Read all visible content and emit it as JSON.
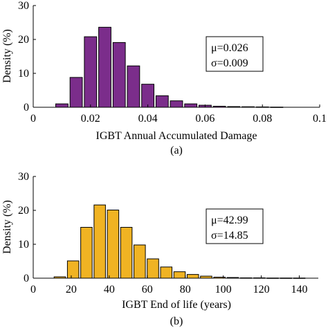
{
  "chart_data": [
    {
      "type": "bar",
      "panel_label": "(a)",
      "xlabel": "IGBT Annual Accumulated Damage",
      "ylabel": "Density (%)",
      "xlim": [
        0,
        0.1
      ],
      "ylim": [
        0,
        30
      ],
      "xticks": [
        "0",
        "0.02",
        "0.04",
        "0.06",
        "0.08",
        "0.1"
      ],
      "yticks": [
        "0",
        "10",
        "20",
        "30"
      ],
      "bar_color": "#7B2D8B",
      "bin_width": 0.005,
      "bins": [
        {
          "x": 0.01,
          "value": 1.0
        },
        {
          "x": 0.015,
          "value": 8.8
        },
        {
          "x": 0.02,
          "value": 20.8
        },
        {
          "x": 0.025,
          "value": 23.6
        },
        {
          "x": 0.03,
          "value": 19.1
        },
        {
          "x": 0.035,
          "value": 12.2
        },
        {
          "x": 0.04,
          "value": 6.8
        },
        {
          "x": 0.045,
          "value": 3.4
        },
        {
          "x": 0.05,
          "value": 1.9
        },
        {
          "x": 0.055,
          "value": 1.0
        },
        {
          "x": 0.06,
          "value": 0.6
        },
        {
          "x": 0.065,
          "value": 0.3
        },
        {
          "x": 0.07,
          "value": 0.2
        },
        {
          "x": 0.075,
          "value": 0.15
        },
        {
          "x": 0.08,
          "value": 0.1
        },
        {
          "x": 0.085,
          "value": 0.05
        }
      ],
      "stats": {
        "mu": "μ=0.026",
        "sigma": "σ=0.009"
      }
    },
    {
      "type": "bar",
      "panel_label": "(b)",
      "xlabel": "IGBT End of life (years)",
      "ylabel": "Density (%)",
      "xlim": [
        0,
        150
      ],
      "ylim": [
        0,
        30
      ],
      "xticks": [
        "0",
        "20",
        "40",
        "60",
        "80",
        "100",
        "120",
        "140"
      ],
      "yticks": [
        "0",
        "10",
        "20",
        "30"
      ],
      "bar_color": "#F0B323",
      "bin_width": 7,
      "bins": [
        {
          "x": 14,
          "value": 0.4
        },
        {
          "x": 21,
          "value": 5.1
        },
        {
          "x": 28,
          "value": 15.0
        },
        {
          "x": 35,
          "value": 21.6
        },
        {
          "x": 42,
          "value": 20.1
        },
        {
          "x": 49,
          "value": 15.0
        },
        {
          "x": 56,
          "value": 9.8
        },
        {
          "x": 63,
          "value": 5.7
        },
        {
          "x": 70,
          "value": 3.3
        },
        {
          "x": 77,
          "value": 1.9
        },
        {
          "x": 84,
          "value": 1.1
        },
        {
          "x": 91,
          "value": 0.6
        },
        {
          "x": 98,
          "value": 0.3
        },
        {
          "x": 105,
          "value": 0.2
        },
        {
          "x": 112,
          "value": 0.1
        },
        {
          "x": 119,
          "value": 0.1
        },
        {
          "x": 126,
          "value": 0.05
        },
        {
          "x": 133,
          "value": 0.05
        },
        {
          "x": 140,
          "value": 0.05
        }
      ],
      "stats": {
        "mu": "μ=42.99",
        "sigma": "σ=14.85"
      }
    }
  ]
}
